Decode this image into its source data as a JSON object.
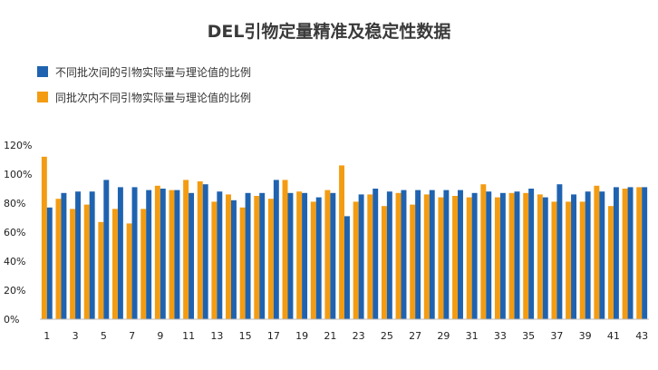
{
  "chart_data": {
    "type": "bar",
    "title": "DEL引物定量精准及稳定性数据",
    "legend_placement": "top-left",
    "xlabel": "",
    "ylabel": "",
    "ylim": [
      0,
      1.2
    ],
    "y_ticks": [
      "0%",
      "20%",
      "40%",
      "60%",
      "80%",
      "100%",
      "120%"
    ],
    "x_tick_labels": [
      "1",
      "3",
      "5",
      "7",
      "9",
      "11",
      "13",
      "15",
      "17",
      "19",
      "21",
      "23",
      "25",
      "27",
      "29",
      "31",
      "33",
      "35",
      "37",
      "39",
      "41",
      "43"
    ],
    "categories": [
      "1",
      "2",
      "3",
      "4",
      "5",
      "6",
      "7",
      "8",
      "9",
      "10",
      "11",
      "12",
      "13",
      "14",
      "15",
      "16",
      "17",
      "18",
      "19",
      "20",
      "21",
      "22",
      "23",
      "24",
      "25",
      "26",
      "27",
      "28",
      "29",
      "30",
      "31",
      "32",
      "33",
      "34",
      "35",
      "36",
      "37",
      "38",
      "39",
      "40",
      "41",
      "42",
      "43"
    ],
    "series": [
      {
        "name": "同批次内不同引物实际量与理论值的比例",
        "color": "#f39c12",
        "values": [
          1.12,
          0.83,
          0.76,
          0.79,
          0.67,
          0.76,
          0.66,
          0.76,
          0.92,
          0.89,
          0.96,
          0.95,
          0.81,
          0.86,
          0.77,
          0.85,
          0.83,
          0.96,
          0.88,
          0.81,
          0.89,
          1.06,
          0.81,
          0.86,
          0.78,
          0.87,
          0.79,
          0.86,
          0.84,
          0.85,
          0.84,
          0.93,
          0.84,
          0.87,
          0.87,
          0.86,
          0.81,
          0.81,
          0.81,
          0.92,
          0.78,
          0.9,
          0.91
        ]
      },
      {
        "name": "不同批次间的引物实际量与理论值的比例",
        "color": "#1f63b0",
        "values": [
          0.77,
          0.87,
          0.88,
          0.88,
          0.96,
          0.91,
          0.91,
          0.89,
          0.9,
          0.89,
          0.87,
          0.93,
          0.88,
          0.82,
          0.87,
          0.87,
          0.96,
          0.87,
          0.87,
          0.84,
          0.87,
          0.71,
          0.86,
          0.9,
          0.88,
          0.89,
          0.89,
          0.89,
          0.89,
          0.89,
          0.87,
          0.88,
          0.87,
          0.88,
          0.9,
          0.84,
          0.93,
          0.86,
          0.88,
          0.88,
          0.91,
          0.91,
          0.91
        ]
      }
    ]
  }
}
